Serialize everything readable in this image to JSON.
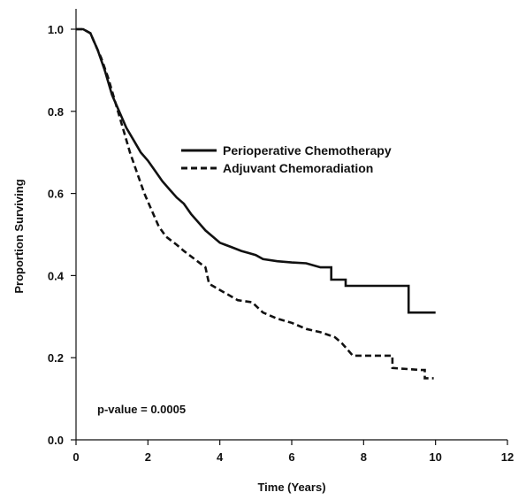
{
  "chart_data": {
    "type": "line",
    "title": "",
    "xlabel": "Time (Years)",
    "ylabel": "Proportion Surviving",
    "xlim": [
      0,
      12
    ],
    "ylim": [
      0,
      1.0
    ],
    "x_ticks": [
      0,
      2,
      4,
      6,
      8,
      10,
      12
    ],
    "y_ticks": [
      0.0,
      0.2,
      0.4,
      0.6,
      0.8,
      1.0
    ],
    "x_tick_labels": [
      "0",
      "2",
      "4",
      "6",
      "8",
      "10",
      "12"
    ],
    "y_tick_labels": [
      "0.0",
      "0.2",
      "0.4",
      "0.6",
      "0.8",
      "1.0"
    ],
    "grid": false,
    "legend": {
      "position": "center-right"
    },
    "annotation": "p-value = 0.0005",
    "series": [
      {
        "name": "Perioperative Chemotherapy",
        "style": "solid",
        "color": "#111111",
        "points": [
          [
            0,
            1.0
          ],
          [
            0.2,
            1.0
          ],
          [
            0.4,
            0.99
          ],
          [
            0.6,
            0.95
          ],
          [
            0.8,
            0.9
          ],
          [
            1.0,
            0.84
          ],
          [
            1.2,
            0.8
          ],
          [
            1.4,
            0.76
          ],
          [
            1.6,
            0.73
          ],
          [
            1.8,
            0.7
          ],
          [
            2.0,
            0.68
          ],
          [
            2.2,
            0.655
          ],
          [
            2.4,
            0.63
          ],
          [
            2.6,
            0.61
          ],
          [
            2.8,
            0.59
          ],
          [
            3.0,
            0.575
          ],
          [
            3.2,
            0.55
          ],
          [
            3.4,
            0.53
          ],
          [
            3.6,
            0.51
          ],
          [
            3.8,
            0.495
          ],
          [
            4.0,
            0.48
          ],
          [
            4.3,
            0.47
          ],
          [
            4.6,
            0.46
          ],
          [
            4.8,
            0.455
          ],
          [
            5.0,
            0.45
          ],
          [
            5.2,
            0.44
          ],
          [
            5.6,
            0.435
          ],
          [
            6.0,
            0.432
          ],
          [
            6.4,
            0.43
          ],
          [
            6.8,
            0.42
          ],
          [
            7.1,
            0.42
          ],
          [
            7.1,
            0.39
          ],
          [
            7.5,
            0.39
          ],
          [
            7.5,
            0.375
          ],
          [
            8.5,
            0.375
          ],
          [
            9.25,
            0.375
          ],
          [
            9.25,
            0.31
          ],
          [
            10.0,
            0.31
          ]
        ]
      },
      {
        "name": "Adjuvant Chemoradiation",
        "style": "dashed",
        "color": "#111111",
        "points": [
          [
            0,
            1.0
          ],
          [
            0.2,
            1.0
          ],
          [
            0.4,
            0.99
          ],
          [
            0.5,
            0.97
          ],
          [
            0.7,
            0.93
          ],
          [
            0.9,
            0.88
          ],
          [
            1.1,
            0.82
          ],
          [
            1.3,
            0.76
          ],
          [
            1.5,
            0.7
          ],
          [
            1.7,
            0.65
          ],
          [
            1.9,
            0.6
          ],
          [
            2.1,
            0.56
          ],
          [
            2.3,
            0.52
          ],
          [
            2.5,
            0.495
          ],
          [
            2.8,
            0.475
          ],
          [
            3.0,
            0.46
          ],
          [
            3.3,
            0.44
          ],
          [
            3.6,
            0.42
          ],
          [
            3.7,
            0.38
          ],
          [
            3.9,
            0.37
          ],
          [
            4.2,
            0.355
          ],
          [
            4.5,
            0.34
          ],
          [
            4.9,
            0.335
          ],
          [
            5.2,
            0.31
          ],
          [
            5.6,
            0.295
          ],
          [
            6.0,
            0.285
          ],
          [
            6.4,
            0.27
          ],
          [
            6.8,
            0.262
          ],
          [
            7.2,
            0.25
          ],
          [
            7.4,
            0.235
          ],
          [
            7.7,
            0.205
          ],
          [
            8.3,
            0.205
          ],
          [
            8.8,
            0.205
          ],
          [
            8.8,
            0.175
          ],
          [
            9.6,
            0.17
          ],
          [
            9.7,
            0.17
          ],
          [
            9.7,
            0.15
          ],
          [
            9.95,
            0.15
          ]
        ]
      }
    ]
  }
}
